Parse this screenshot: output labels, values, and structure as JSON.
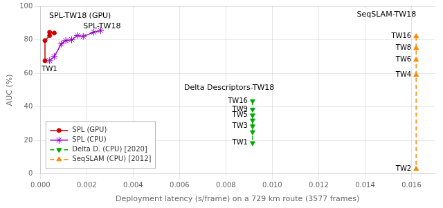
{
  "chart_data": {
    "type": "line",
    "series": [
      {
        "name": "SPL (GPU)",
        "color": "#cc0000",
        "marker": "circle",
        "line_style": "solid",
        "x": [
          0.0002,
          0.0002,
          0.0004,
          0.0004,
          0.0006
        ],
        "values": [
          67.5,
          79.5,
          82.5,
          84.5,
          84.0
        ],
        "point_labels": [
          "TW1",
          null,
          null,
          null,
          null
        ]
      },
      {
        "name": "SPL (CPU)",
        "color": "#9900cc",
        "marker": "star",
        "line_style": "solid",
        "x": [
          0.0004,
          0.0006,
          0.0009,
          0.0011,
          0.00135,
          0.0016,
          0.00185,
          0.0023,
          0.0026
        ],
        "values": [
          67.5,
          70.0,
          77.5,
          79.5,
          80.0,
          82.5,
          82.0,
          84.5,
          85.5
        ]
      },
      {
        "name": "Delta D. (CPU) [2020]",
        "color": "#00aa00",
        "marker": "triangle_down",
        "line_style": "dashed",
        "x": [
          0.00915,
          0.00915,
          0.00915,
          0.00915,
          0.00915,
          0.00915,
          0.00915
        ],
        "values": [
          43.5,
          38.5,
          35.0,
          32.0,
          28.5,
          25.0,
          18.5
        ],
        "point_labels": [
          "TW16",
          "TW9",
          "TW5",
          null,
          "TW3",
          null,
          "TW1"
        ]
      },
      {
        "name": "SeqSLAM (CPU) [2012]",
        "color": "#ff8800",
        "marker": "triangle_up",
        "line_style": "dashed",
        "x": [
          0.0162,
          0.0162,
          0.0162,
          0.0162,
          0.0162
        ],
        "values": [
          82.0,
          75.0,
          68.0,
          59.0,
          3.0
        ],
        "point_labels": [
          "TW16",
          "TW8",
          "TW6",
          "TW4",
          "TW2"
        ]
      }
    ],
    "annotations": [
      {
        "text": "SPL-TW18 (GPU)",
        "x": 0.00038,
        "y": 93
      },
      {
        "text": "SPL-TW18",
        "x": 0.00185,
        "y": 87
      },
      {
        "text": "Delta Descriptors-TW18",
        "x": 0.0062,
        "y": 50
      },
      {
        "text": "SeqSLAM-TW18",
        "x": 0.0162,
        "y": 94
      }
    ],
    "xlabel": "Deployment latency (s/frame) on a 729 km route (3577 frames)",
    "ylabel": "AUC (%)",
    "xlim": [
      0.0,
      0.017
    ],
    "ylim": [
      0,
      100
    ],
    "xticks": [
      {
        "value": 0.0,
        "label": "0.000"
      },
      {
        "value": 0.002,
        "label": "0.002"
      },
      {
        "value": 0.004,
        "label": "0.004"
      },
      {
        "value": 0.006,
        "label": "0.006"
      },
      {
        "value": 0.008,
        "label": "0.008"
      },
      {
        "value": 0.01,
        "label": "0.010"
      },
      {
        "value": 0.012,
        "label": "0.012"
      },
      {
        "value": 0.014,
        "label": "0.014"
      },
      {
        "value": 0.016,
        "label": "0.016"
      }
    ],
    "yticks": [
      0,
      20,
      40,
      60,
      80,
      100
    ],
    "grid": true,
    "legend": "lower left"
  }
}
